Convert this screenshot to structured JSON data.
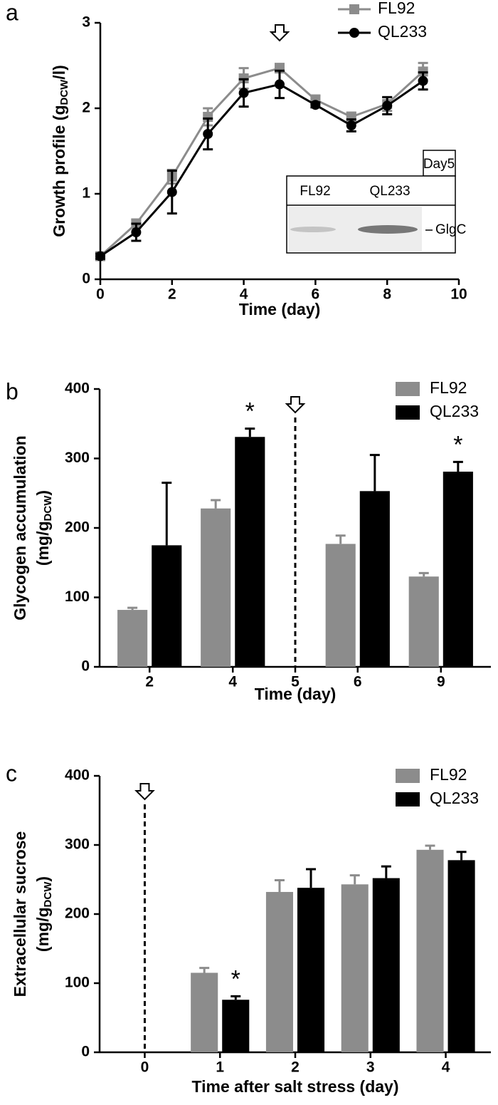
{
  "chart_data": [
    {
      "panel": "a",
      "type": "line",
      "y_label": [
        [
          "Growth profile (g",
          "DCW",
          "/l)"
        ]
      ],
      "x_label": "Time (day)",
      "x": [
        0,
        1,
        2,
        3,
        4,
        5,
        6,
        7,
        8,
        9
      ],
      "series": [
        {
          "name": "FL92",
          "color": "#8c8c8c",
          "marker": "square",
          "values": [
            0.27,
            0.65,
            1.2,
            1.9,
            2.35,
            2.47,
            2.1,
            1.9,
            2.05,
            2.43
          ],
          "errors": [
            0.03,
            0.05,
            0.08,
            0.1,
            0.12,
            0.05,
            0.05,
            0.05,
            0.08,
            0.1
          ]
        },
        {
          "name": "QL233",
          "color": "#000000",
          "marker": "circle",
          "values": [
            0.27,
            0.55,
            1.02,
            1.7,
            2.18,
            2.28,
            2.04,
            1.8,
            2.03,
            2.32
          ],
          "errors": [
            0.03,
            0.1,
            0.25,
            0.18,
            0.16,
            0.16,
            0.03,
            0.07,
            0.1,
            0.1
          ]
        }
      ],
      "xlim": [
        0,
        10
      ],
      "ylim": [
        0,
        3
      ],
      "xticks": [
        0,
        2,
        4,
        6,
        8,
        10
      ],
      "yticks": [
        0,
        1,
        2,
        3
      ],
      "arrow_x": 5,
      "legend": "top",
      "inset": {
        "tab": "Day5",
        "lanes": [
          "FL92",
          "QL233"
        ],
        "band_label": "GlgC"
      }
    },
    {
      "panel": "b",
      "type": "bar",
      "y_label": [
        [
          "Glycogen accumulation"
        ],
        [
          "(mg/g",
          "DCW",
          ")"
        ]
      ],
      "x_label": "Time (day)",
      "categories": [
        "2",
        "4",
        "5",
        "6",
        "9"
      ],
      "series": [
        {
          "name": "FL92",
          "color": "#8c8c8c",
          "values": [
            82,
            228,
            null,
            177,
            130
          ],
          "errors": [
            3,
            12,
            null,
            12,
            5
          ]
        },
        {
          "name": "QL233",
          "color": "#000000",
          "values": [
            175,
            331,
            null,
            253,
            281
          ],
          "errors": [
            90,
            12,
            null,
            52,
            14
          ]
        }
      ],
      "ylim": [
        0,
        400
      ],
      "yticks": [
        0,
        100,
        200,
        300,
        400
      ],
      "annotations": [
        {
          "text": "*",
          "category": "4",
          "series": "QL233"
        },
        {
          "text": "*",
          "category": "9",
          "series": "QL233"
        }
      ],
      "legend": "upper right"
    },
    {
      "panel": "c",
      "type": "bar",
      "y_label": [
        [
          "Extracellular sucrose"
        ],
        [
          "(mg/g",
          "DCW",
          ")"
        ]
      ],
      "x_label": "Time after salt stress (day)",
      "categories": [
        "0",
        "1",
        "2",
        "3",
        "4"
      ],
      "series": [
        {
          "name": "FL92",
          "color": "#8c8c8c",
          "values": [
            null,
            115,
            232,
            243,
            293
          ],
          "errors": [
            null,
            7,
            17,
            13,
            6
          ]
        },
        {
          "name": "QL233",
          "color": "#000000",
          "values": [
            null,
            76,
            238,
            252,
            278
          ],
          "errors": [
            null,
            5,
            27,
            17,
            12
          ]
        }
      ],
      "ylim": [
        0,
        400
      ],
      "yticks": [
        0,
        100,
        200,
        300,
        400
      ],
      "annotations": [
        {
          "text": "*",
          "category": "1",
          "series": "QL233"
        }
      ],
      "legend": "upper right"
    }
  ]
}
